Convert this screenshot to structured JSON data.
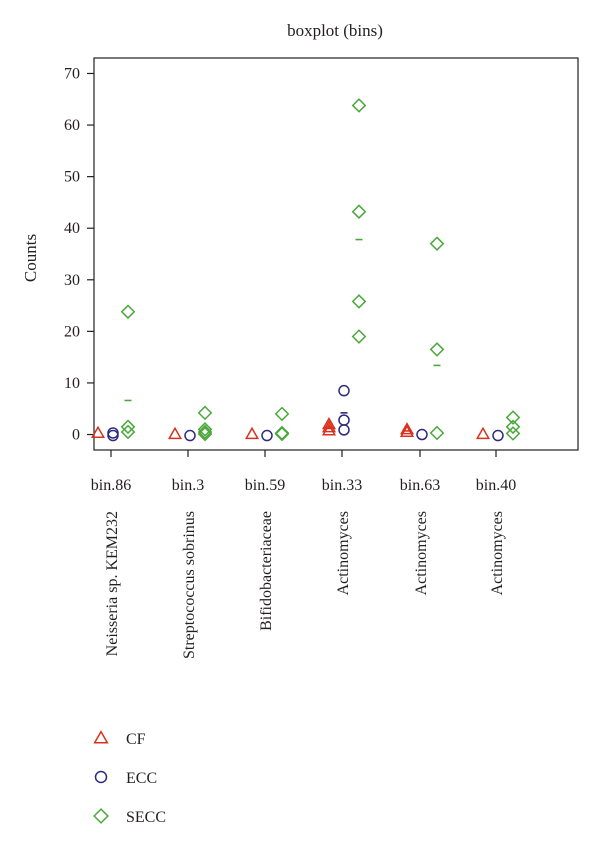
{
  "chart_data": {
    "type": "scatter",
    "title": "boxplot (bins)",
    "ylabel": "Counts",
    "ylim": [
      -3,
      73
    ],
    "yticks": [
      0,
      10,
      20,
      30,
      40,
      50,
      60,
      70
    ],
    "categories": [
      "bin.86",
      "bin.3",
      "bin.59",
      "bin.33",
      "bin.63",
      "bin.40"
    ],
    "taxa": [
      "Neisseria sp. KEM232",
      "Streptococcus sobrinus",
      "Bifidobacteriaceae",
      "Actinomyces",
      "Actinomyces",
      "Actinomyces"
    ],
    "legend_position": "bottom-left",
    "series": [
      {
        "name": "CF",
        "marker": "triangle",
        "color": "#d8311d",
        "points": [
          [
            0,
            0.3
          ],
          [
            1,
            0.1
          ],
          [
            2,
            0.1
          ],
          [
            3,
            2.0
          ],
          [
            3,
            1.4
          ],
          [
            3,
            0.8
          ],
          [
            4,
            1.0
          ],
          [
            4,
            0.5
          ],
          [
            5,
            0.1
          ]
        ],
        "means": [
          [
            3,
            1.4
          ],
          [
            4,
            0.7
          ]
        ]
      },
      {
        "name": "ECC",
        "marker": "circle",
        "color": "#2d2a7c",
        "points": [
          [
            0,
            0.3
          ],
          [
            0,
            -0.2
          ],
          [
            1,
            -0.2
          ],
          [
            2,
            -0.2
          ],
          [
            3,
            8.5
          ],
          [
            3,
            2.8
          ],
          [
            3,
            0.9
          ],
          [
            4,
            0.0
          ],
          [
            5,
            -0.2
          ]
        ],
        "means": [
          [
            3,
            4.2
          ]
        ]
      },
      {
        "name": "SECC",
        "marker": "diamond",
        "color": "#4aa83a",
        "points": [
          [
            0,
            23.8
          ],
          [
            0,
            1.5
          ],
          [
            0,
            0.5
          ],
          [
            1,
            4.2
          ],
          [
            1,
            1.0
          ],
          [
            1,
            0.5
          ],
          [
            1,
            0.1
          ],
          [
            2,
            4.0
          ],
          [
            2,
            0.3
          ],
          [
            2,
            0.1
          ],
          [
            3,
            63.8
          ],
          [
            3,
            43.2
          ],
          [
            3,
            25.8
          ],
          [
            3,
            19.0
          ],
          [
            4,
            37.0
          ],
          [
            4,
            16.5
          ],
          [
            4,
            0.3
          ],
          [
            5,
            3.3
          ],
          [
            5,
            1.5
          ],
          [
            5,
            0.2
          ]
        ],
        "means": [
          [
            0,
            6.6
          ],
          [
            3,
            37.8
          ],
          [
            4,
            13.4
          ]
        ]
      }
    ]
  }
}
